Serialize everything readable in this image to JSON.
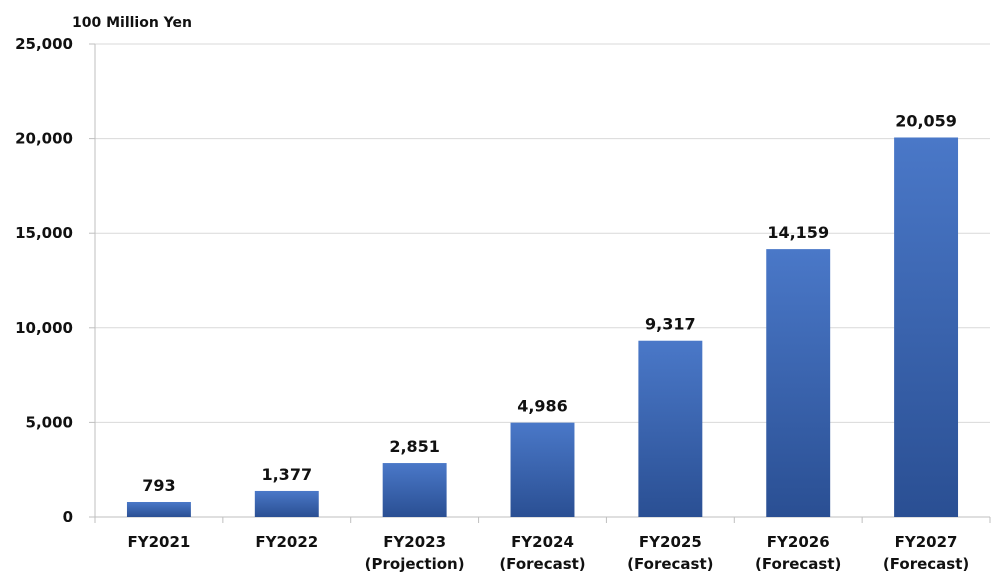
{
  "chart_data": {
    "type": "bar",
    "ylabel": "100 Million Yen",
    "categories": [
      [
        "FY2021"
      ],
      [
        "FY2022"
      ],
      [
        "FY2023",
        "(Projection)"
      ],
      [
        "FY2024",
        "(Forecast)"
      ],
      [
        "FY2025",
        "(Forecast)"
      ],
      [
        "FY2026",
        "(Forecast)"
      ],
      [
        "FY2027",
        "(Forecast)"
      ]
    ],
    "values": [
      793,
      1377,
      2851,
      4986,
      9317,
      14159,
      20059
    ],
    "value_labels": [
      "793",
      "1,377",
      "2,851",
      "4,986",
      "9,317",
      "14,159",
      "20,059"
    ],
    "ylim": [
      0,
      25000
    ],
    "yticks": [
      0,
      5000,
      10000,
      15000,
      20000,
      25000
    ],
    "ytick_labels": [
      "0",
      "5,000",
      "10,000",
      "15,000",
      "20,000",
      "25,000"
    ],
    "grid": true,
    "legend": "none",
    "colors": {
      "bar_top": "#4a78c8",
      "bar_bottom": "#2a4f93",
      "grid": "#d9d9d9",
      "axis": "#bfbfbf"
    }
  }
}
